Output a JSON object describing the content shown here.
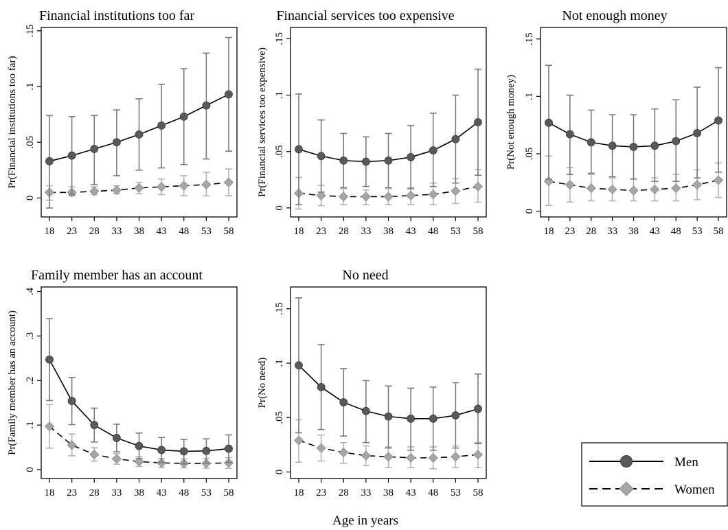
{
  "x_axis_label": "Age in years",
  "colors": {
    "men": "#595959",
    "women": "#a6a6a6",
    "men_ci": "#7a7a7a",
    "women_ci": "#b3b3b3"
  },
  "legend": {
    "placement": "bottom-right",
    "men": "Men",
    "women": "Women"
  },
  "chart_data": [
    {
      "type": "line",
      "title": "Financial institutions too far",
      "ylabel": "Pr(Financial institutions too far)",
      "x": [
        18,
        23,
        28,
        33,
        38,
        43,
        48,
        53,
        58
      ],
      "ylim": [
        -0.017,
        0.153
      ],
      "yticks": [
        0,
        0.05,
        0.1,
        0.15
      ],
      "ytick_labels": [
        "0",
        ".05",
        ".1",
        ".15"
      ],
      "grid": false,
      "series": [
        {
          "name": "Men",
          "marker": "circle",
          "line": "solid",
          "values": [
            0.033,
            0.038,
            0.044,
            0.05,
            0.057,
            0.065,
            0.073,
            0.083,
            0.093
          ],
          "ci_low": [
            -0.009,
            0.003,
            0.012,
            0.02,
            0.025,
            0.027,
            0.03,
            0.035,
            0.042
          ],
          "ci_high": [
            0.074,
            0.073,
            0.074,
            0.079,
            0.089,
            0.102,
            0.116,
            0.13,
            0.144
          ]
        },
        {
          "name": "Women",
          "marker": "diamond",
          "line": "dashed",
          "values": [
            0.005,
            0.005,
            0.006,
            0.007,
            0.009,
            0.01,
            0.011,
            0.012,
            0.014
          ],
          "ci_low": [
            -0.002,
            0.002,
            0.003,
            0.004,
            0.004,
            0.003,
            0.002,
            0.002,
            0.002
          ],
          "ci_high": [
            0.011,
            0.01,
            0.01,
            0.011,
            0.014,
            0.017,
            0.02,
            0.023,
            0.026
          ]
        }
      ]
    },
    {
      "type": "line",
      "title": "Financial services too expensive",
      "ylabel": "Pr(Financial services too expensive)",
      "x": [
        18,
        23,
        28,
        33,
        38,
        43,
        48,
        53,
        58
      ],
      "ylim": [
        -0.008,
        0.16
      ],
      "yticks": [
        0,
        0.05,
        0.1,
        0.15
      ],
      "ytick_labels": [
        "0",
        ".05",
        ".1",
        ".15"
      ],
      "grid": false,
      "series": [
        {
          "name": "Men",
          "marker": "circle",
          "line": "solid",
          "values": [
            0.052,
            0.046,
            0.042,
            0.041,
            0.042,
            0.045,
            0.051,
            0.061,
            0.076
          ],
          "ci_low": [
            0.003,
            0.014,
            0.018,
            0.019,
            0.018,
            0.017,
            0.019,
            0.022,
            0.029
          ],
          "ci_high": [
            0.101,
            0.078,
            0.066,
            0.063,
            0.066,
            0.073,
            0.084,
            0.1,
            0.123
          ]
        },
        {
          "name": "Women",
          "marker": "diamond",
          "line": "dashed",
          "values": [
            0.013,
            0.011,
            0.01,
            0.01,
            0.01,
            0.011,
            0.012,
            0.015,
            0.019
          ],
          "ci_low": [
            -0.001,
            0.002,
            0.003,
            0.003,
            0.003,
            0.003,
            0.003,
            0.004,
            0.005
          ],
          "ci_high": [
            0.027,
            0.02,
            0.017,
            0.016,
            0.017,
            0.018,
            0.022,
            0.026,
            0.034
          ]
        }
      ]
    },
    {
      "type": "line",
      "title": "Not enough money",
      "ylabel": "Pr(Not enough money)",
      "x": [
        18,
        23,
        28,
        33,
        38,
        43,
        48,
        53,
        58
      ],
      "ylim": [
        -0.005,
        0.16
      ],
      "yticks": [
        0,
        0.05,
        0.1,
        0.15
      ],
      "ytick_labels": [
        "0",
        ".05",
        ".1",
        ".15"
      ],
      "grid": false,
      "series": [
        {
          "name": "Men",
          "marker": "circle",
          "line": "solid",
          "values": [
            0.077,
            0.067,
            0.06,
            0.057,
            0.056,
            0.057,
            0.061,
            0.068,
            0.079
          ],
          "ci_low": [
            0.028,
            0.032,
            0.033,
            0.03,
            0.028,
            0.026,
            0.026,
            0.029,
            0.034
          ],
          "ci_high": [
            0.127,
            0.101,
            0.088,
            0.084,
            0.084,
            0.089,
            0.097,
            0.108,
            0.125
          ]
        },
        {
          "name": "Women",
          "marker": "diamond",
          "line": "dashed",
          "values": [
            0.026,
            0.023,
            0.02,
            0.019,
            0.018,
            0.019,
            0.02,
            0.023,
            0.027
          ],
          "ci_low": [
            0.005,
            0.008,
            0.009,
            0.009,
            0.009,
            0.009,
            0.009,
            0.01,
            0.012
          ],
          "ci_high": [
            0.048,
            0.038,
            0.032,
            0.029,
            0.028,
            0.029,
            0.032,
            0.036,
            0.042
          ]
        }
      ]
    },
    {
      "type": "line",
      "title": "Family member has an account",
      "ylabel": "Pr(Family member has an account)",
      "x": [
        18,
        23,
        28,
        33,
        38,
        43,
        48,
        53,
        58
      ],
      "ylim": [
        -0.02,
        0.41
      ],
      "yticks": [
        0,
        0.1,
        0.2,
        0.3,
        0.4
      ],
      "ytick_labels": [
        "0",
        ".1",
        ".2",
        ".3",
        ".4"
      ],
      "grid": false,
      "series": [
        {
          "name": "Men",
          "marker": "circle",
          "line": "solid",
          "values": [
            0.247,
            0.154,
            0.1,
            0.071,
            0.053,
            0.044,
            0.041,
            0.042,
            0.047
          ],
          "ci_low": [
            0.155,
            0.101,
            0.062,
            0.04,
            0.025,
            0.016,
            0.013,
            0.014,
            0.016
          ],
          "ci_high": [
            0.339,
            0.207,
            0.138,
            0.102,
            0.082,
            0.072,
            0.068,
            0.069,
            0.078
          ]
        },
        {
          "name": "Women",
          "marker": "diamond",
          "line": "dashed",
          "values": [
            0.097,
            0.055,
            0.034,
            0.024,
            0.018,
            0.015,
            0.014,
            0.014,
            0.015
          ],
          "ci_low": [
            0.048,
            0.031,
            0.019,
            0.012,
            0.007,
            0.005,
            0.004,
            0.003,
            0.003
          ],
          "ci_high": [
            0.146,
            0.08,
            0.049,
            0.036,
            0.029,
            0.025,
            0.024,
            0.025,
            0.027
          ]
        }
      ]
    },
    {
      "type": "line",
      "title": "No need",
      "ylabel": "Pr(No need)",
      "x": [
        18,
        23,
        28,
        33,
        38,
        43,
        48,
        53,
        58
      ],
      "ylim": [
        -0.006,
        0.17
      ],
      "yticks": [
        0,
        0.05,
        0.1,
        0.15
      ],
      "ytick_labels": [
        "0",
        ".05",
        ".1",
        ".15"
      ],
      "grid": false,
      "series": [
        {
          "name": "Men",
          "marker": "circle",
          "line": "solid",
          "values": [
            0.098,
            0.078,
            0.064,
            0.056,
            0.051,
            0.049,
            0.049,
            0.052,
            0.058
          ],
          "ci_low": [
            0.036,
            0.039,
            0.033,
            0.027,
            0.022,
            0.02,
            0.02,
            0.022,
            0.026
          ],
          "ci_high": [
            0.16,
            0.117,
            0.095,
            0.084,
            0.079,
            0.077,
            0.078,
            0.082,
            0.09
          ]
        },
        {
          "name": "Women",
          "marker": "diamond",
          "line": "dashed",
          "values": [
            0.029,
            0.022,
            0.018,
            0.015,
            0.014,
            0.013,
            0.013,
            0.014,
            0.016
          ],
          "ci_low": [
            0.009,
            0.01,
            0.008,
            0.006,
            0.004,
            0.004,
            0.003,
            0.004,
            0.004
          ],
          "ci_high": [
            0.048,
            0.034,
            0.027,
            0.024,
            0.023,
            0.023,
            0.023,
            0.024,
            0.027
          ]
        }
      ]
    }
  ]
}
